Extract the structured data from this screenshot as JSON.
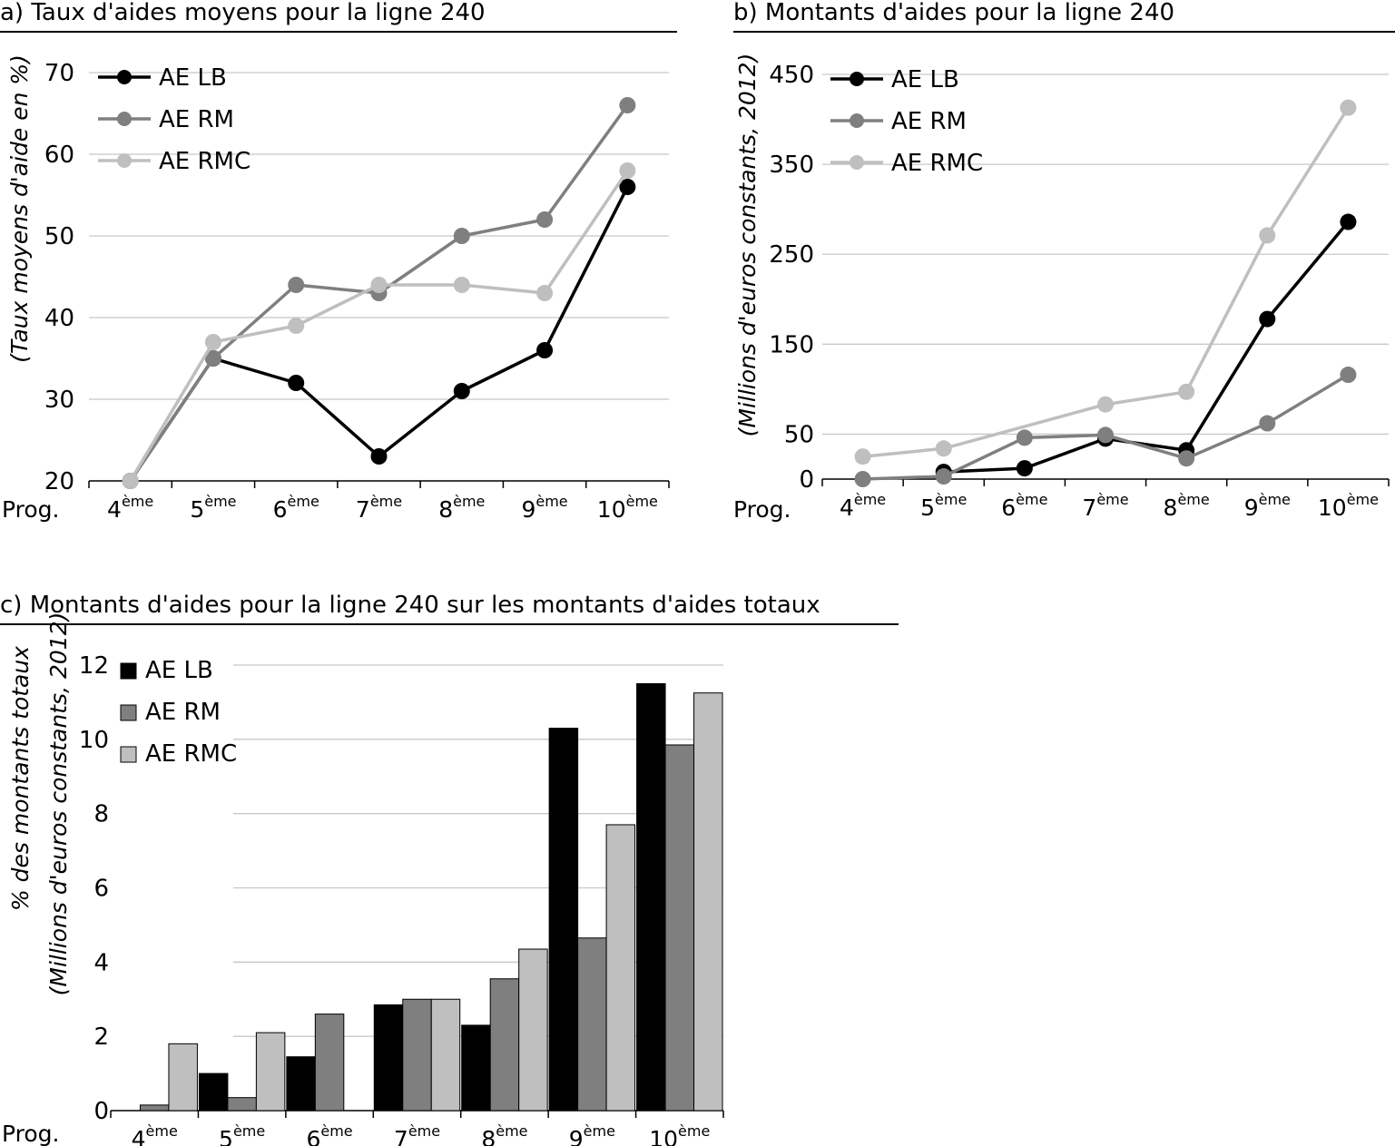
{
  "prog_label": "Prog.",
  "charts": [
    {
      "title": "a) Taux d'aides moyens pour la ligne 240",
      "ylabel": "(Taux moyens d'aide en %)",
      "ylabel_lines": [
        "(Taux moyens d'aide en %)"
      ]
    },
    {
      "title": "b) Montants d'aides pour la ligne 240",
      "ylabel": "(Millions d'euros constants, 2012)",
      "ylabel_lines": [
        "(Millions d'euros constants, 2012)"
      ]
    },
    {
      "title": "c) Montants d'aides pour la ligne 240 sur les montants d'aides totaux",
      "ylabel": "% des montants totaux (Millions d'euros constants, 2012)",
      "ylabel_lines": [
        "% des montants totaux",
        "(Millions d'euros constants, 2012)"
      ]
    }
  ],
  "chart_data": [
    {
      "type": "line",
      "title": "a) Taux d'aides moyens pour la ligne 240",
      "xlabel": "Prog.",
      "ylabel": "(Taux moyens d'aide en %)",
      "categories": [
        {
          "num": "4",
          "sup": "ème"
        },
        {
          "num": "5",
          "sup": "ème"
        },
        {
          "num": "6",
          "sup": "ème"
        },
        {
          "num": "7",
          "sup": "ème"
        },
        {
          "num": "8",
          "sup": "ème"
        },
        {
          "num": "9",
          "sup": "ème"
        },
        {
          "num": "10",
          "sup": "ème"
        }
      ],
      "ylim": [
        20,
        70
      ],
      "yticks": [
        20,
        30,
        40,
        50,
        60,
        70
      ],
      "grid": true,
      "legend": "top-left",
      "series": [
        {
          "name": "AE LB",
          "color": "#000000",
          "values": [
            20,
            35,
            32,
            23,
            31,
            36,
            56
          ]
        },
        {
          "name": "AE RM",
          "color": "#7f7f7f",
          "values": [
            20,
            35,
            44,
            43,
            50,
            52,
            66
          ]
        },
        {
          "name": "AE RMC",
          "color": "#bfbfbf",
          "values": [
            20,
            37,
            39,
            44,
            44,
            43,
            58
          ]
        }
      ]
    },
    {
      "type": "line",
      "title": "b) Montants d'aides pour la ligne 240",
      "xlabel": "Prog.",
      "ylabel": "(Millions d'euros constants, 2012)",
      "categories": [
        {
          "num": "4",
          "sup": "ème"
        },
        {
          "num": "5",
          "sup": "ème"
        },
        {
          "num": "6",
          "sup": "ème"
        },
        {
          "num": "7",
          "sup": "ème"
        },
        {
          "num": "8",
          "sup": "ème"
        },
        {
          "num": "9",
          "sup": "ème"
        },
        {
          "num": "10",
          "sup": "ème"
        }
      ],
      "ylim": [
        0,
        450
      ],
      "yticks": [
        0,
        50,
        150,
        250,
        350,
        450
      ],
      "grid": true,
      "legend": "top-left",
      "series": [
        {
          "name": "AE LB",
          "color": "#000000",
          "values": [
            null,
            8,
            12,
            45,
            32,
            178,
            286
          ]
        },
        {
          "name": "AE RM",
          "color": "#7f7f7f",
          "values": [
            0,
            3,
            46,
            49,
            23,
            62,
            116
          ]
        },
        {
          "name": "AE RMC",
          "color": "#bfbfbf",
          "values": [
            25,
            34,
            null,
            83,
            97,
            271,
            413
          ]
        }
      ]
    },
    {
      "type": "bar",
      "title": "c) Montants d'aides pour la ligne 240 sur les montants d'aides totaux",
      "xlabel": "Prog.",
      "ylabel": "% des montants totaux (Millions d'euros constants, 2012)",
      "categories": [
        {
          "num": "4",
          "sup": "ème"
        },
        {
          "num": "5",
          "sup": "ème"
        },
        {
          "num": "6",
          "sup": "ème"
        },
        {
          "num": "7",
          "sup": "ème"
        },
        {
          "num": "8",
          "sup": "ème"
        },
        {
          "num": "9",
          "sup": "ème"
        },
        {
          "num": "10",
          "sup": "ème"
        }
      ],
      "ylim": [
        0,
        12
      ],
      "yticks": [
        0,
        2,
        4,
        6,
        8,
        10,
        12
      ],
      "grid": true,
      "legend": "top-left",
      "series": [
        {
          "name": "AE LB",
          "color": "#000000",
          "values": [
            null,
            1.0,
            1.45,
            2.85,
            2.3,
            10.3,
            11.5
          ]
        },
        {
          "name": "AE RM",
          "color": "#7f7f7f",
          "values": [
            0.15,
            0.35,
            2.6,
            3.0,
            3.55,
            4.65,
            9.85
          ]
        },
        {
          "name": "AE RMC",
          "color": "#bfbfbf",
          "values": [
            1.8,
            2.1,
            null,
            3.0,
            4.35,
            7.7,
            11.25
          ]
        }
      ]
    }
  ]
}
